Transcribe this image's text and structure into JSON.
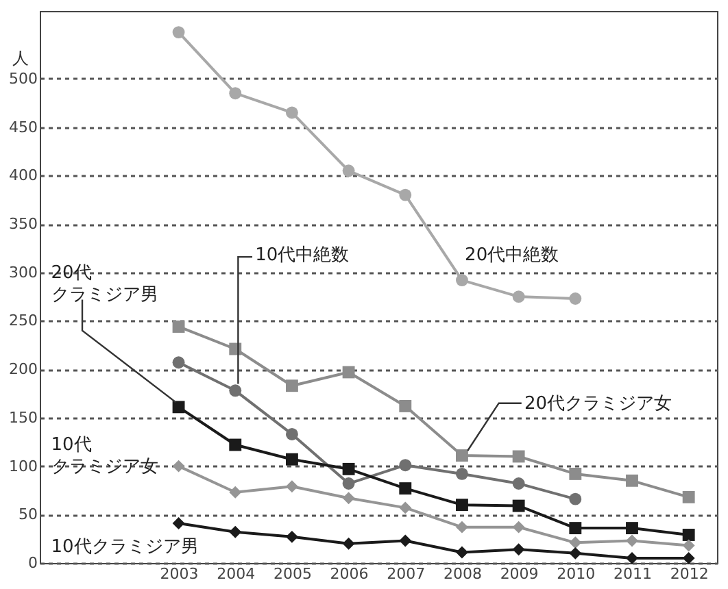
{
  "chart_data": {
    "type": "line",
    "ylabel": "人",
    "x": [
      2003,
      2004,
      2005,
      2006,
      2007,
      2008,
      2009,
      2010,
      2011,
      2012
    ],
    "xlim": [
      2000.55,
      2012.5
    ],
    "xticks": [
      2003,
      2004,
      2005,
      2006,
      2007,
      2008,
      2009,
      2010,
      2011,
      2012
    ],
    "ylim": [
      0,
      570
    ],
    "yticks": [
      0,
      50,
      100,
      150,
      200,
      250,
      300,
      350,
      400,
      450,
      500
    ],
    "grid": "y",
    "line_style": "solid",
    "series": [
      {
        "name": "20代中絶数",
        "color": "#a8a8a8",
        "marker": "circle",
        "values": [
          548,
          485,
          465,
          405,
          380,
          292,
          275,
          273,
          null,
          null
        ]
      },
      {
        "name": "10代中絶数",
        "color": "#707070",
        "marker": "circle",
        "values": [
          207,
          178,
          133,
          82,
          101,
          92,
          82,
          66,
          null,
          null
        ]
      },
      {
        "name": "20代クラミジア女",
        "color": "#8c8c8c",
        "marker": "square",
        "values": [
          244,
          221,
          183,
          197,
          162,
          111,
          110,
          92,
          85,
          68
        ]
      },
      {
        "name": "20代クラミジア男",
        "color": "#1a1a1a",
        "marker": "square",
        "values": [
          161,
          122,
          107,
          97,
          77,
          60,
          59,
          36,
          36,
          29
        ]
      },
      {
        "name": "10代クラミジア女",
        "color": "#959595",
        "marker": "diamond",
        "values": [
          100,
          73,
          79,
          67,
          57,
          37,
          37,
          21,
          23,
          18
        ]
      },
      {
        "name": "10代クラミジア男",
        "color": "#1a1a1a",
        "marker": "diamond",
        "values": [
          41,
          32,
          27,
          20,
          23,
          11,
          14,
          10,
          5,
          5
        ]
      }
    ]
  }
}
